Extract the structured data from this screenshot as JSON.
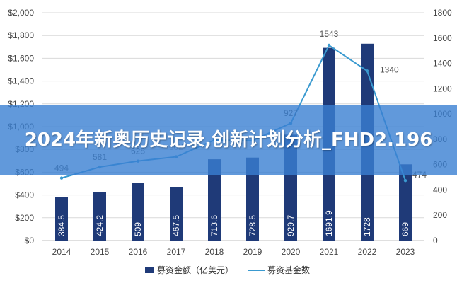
{
  "chart_data": {
    "type": "bar",
    "categories": [
      "2014",
      "2015",
      "2016",
      "2017",
      "2018",
      "2019",
      "2020",
      "2021",
      "2022",
      "2023"
    ],
    "series": [
      {
        "name": "募资金额（亿美元）",
        "type": "bar",
        "axis": "left",
        "values": [
          384.5,
          424.2,
          509,
          467.5,
          713.6,
          728.5,
          929.7,
          1691.9,
          1728,
          669
        ],
        "labels": [
          "384.5",
          "424.2",
          "509",
          "467.5",
          "713.6",
          "728.5",
          "929.7",
          "1691.9",
          "1728",
          "669"
        ],
        "color": "#1f3a78"
      },
      {
        "name": "募资基金数",
        "type": "line",
        "axis": "right",
        "values": [
          494,
          581,
          628,
          662,
          794,
          790,
          927,
          1543,
          1340,
          474
        ],
        "labels": [
          "494",
          "581",
          "628",
          "662",
          "",
          "",
          "927",
          "1543",
          "1340",
          "474"
        ],
        "color": "#3a9ad0"
      }
    ],
    "left_axis": {
      "min": 0,
      "max": 2000,
      "step": 200,
      "ticks": [
        "$0",
        "$200",
        "$400",
        "$600",
        "$800",
        "$1,000",
        "$1,200",
        "$1,400",
        "$1,600",
        "$1,800",
        "$2,000"
      ]
    },
    "right_axis": {
      "min": 0,
      "max": 1800,
      "step": 200,
      "ticks": [
        "0",
        "200",
        "400",
        "600",
        "800",
        "1000",
        "1200",
        "1400",
        "1600",
        "1800"
      ]
    },
    "grid": true,
    "legend_position": "bottom"
  },
  "banner": {
    "title": "2024年新奥历史记录,创新计划分析_FHD2.196"
  }
}
